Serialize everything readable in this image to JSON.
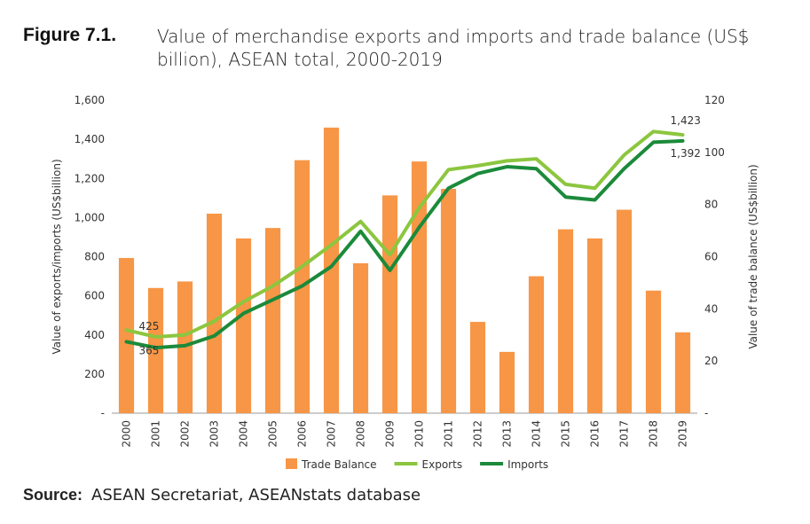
{
  "figure": {
    "label": "Figure 7.1.",
    "title": "Value of merchandise exports and imports and trade balance (US$ billion), ASEAN total, 2000-2019"
  },
  "source": {
    "label": "Source:",
    "text": "ASEAN Secretariat, ASEANstats database"
  },
  "colors": {
    "trade_balance": "#f79646",
    "exports": "#8cc63f",
    "imports": "#1b8a3a",
    "axis": "#999999"
  },
  "chart_data": {
    "type": "bar",
    "categories": [
      "2000",
      "2001",
      "2002",
      "2003",
      "2004",
      "2005",
      "2006",
      "2007",
      "2008",
      "2009",
      "2010",
      "2011",
      "2012",
      "2013",
      "2014",
      "2015",
      "2016",
      "2017",
      "2018",
      "2019"
    ],
    "series": [
      {
        "name": "Trade Balance",
        "type": "bar",
        "axis": "right",
        "values": [
          59.5,
          48,
          50.5,
          76.5,
          67,
          71,
          97,
          109.5,
          57.5,
          83.5,
          96.5,
          86,
          35,
          23.5,
          52.5,
          70.5,
          67,
          78,
          47,
          31
        ]
      },
      {
        "name": "Exports",
        "type": "line",
        "axis": "left",
        "values": [
          425,
          390,
          400,
          470,
          570,
          650,
          750,
          860,
          980,
          810,
          1050,
          1245,
          1265,
          1290,
          1300,
          1170,
          1150,
          1320,
          1440,
          1423
        ]
      },
      {
        "name": "Imports",
        "type": "line",
        "axis": "left",
        "values": [
          365,
          335,
          345,
          395,
          510,
          580,
          650,
          750,
          930,
          730,
          950,
          1150,
          1225,
          1260,
          1250,
          1105,
          1090,
          1250,
          1385,
          1392
        ]
      }
    ],
    "ylabel": "Value of exports/imports (US$billion)",
    "y2label": "Value of trade balance (US$billion)",
    "ylim": [
      0,
      1600
    ],
    "y2lim": [
      0,
      120
    ],
    "yticks": [
      "-",
      "200",
      "400",
      "600",
      "800",
      "1,000",
      "1,200",
      "1,400",
      "1,600"
    ],
    "y2ticks": [
      "-",
      "20",
      "40",
      "60",
      "80",
      "100",
      "120"
    ],
    "annotations": [
      {
        "text": "425",
        "series": "Exports",
        "index": 0
      },
      {
        "text": "365",
        "series": "Imports",
        "index": 0
      },
      {
        "text": "1,423",
        "series": "Exports",
        "index": 19
      },
      {
        "text": "1,392",
        "series": "Imports",
        "index": 19
      }
    ],
    "legend_position": "bottom",
    "grid": false
  }
}
